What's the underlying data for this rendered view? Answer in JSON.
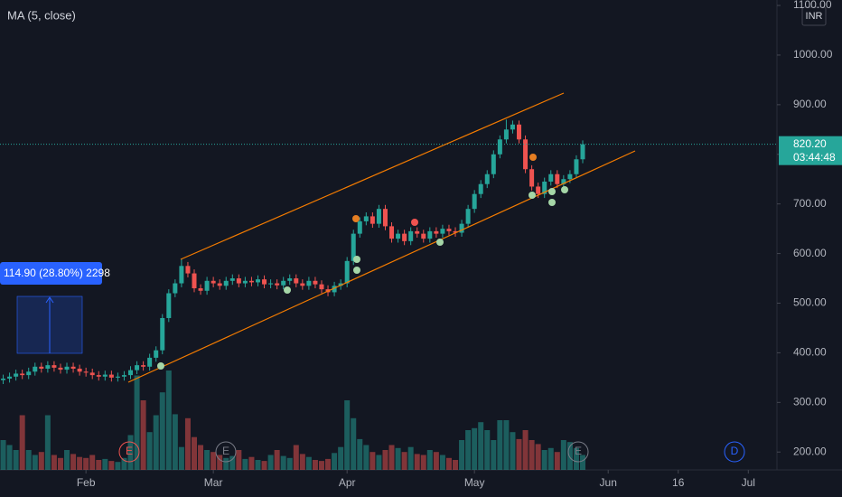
{
  "chart_data": {
    "type": "candlestick",
    "indicator": "MA (5, close)",
    "currency": "INR",
    "measure_label": "114.90 (28.80%) 2298",
    "last_label": "820.20",
    "countdown": "03:44:48",
    "events": [
      "E",
      "E",
      "E",
      "D"
    ],
    "xlim": [
      -0.5,
      121.5
    ],
    "xticks": [
      {
        "value": 13,
        "label": "Feb"
      },
      {
        "value": 33,
        "label": "Mar"
      },
      {
        "value": 54,
        "label": "Apr"
      },
      {
        "value": 74,
        "label": "May"
      },
      {
        "value": 95,
        "label": "Jun"
      },
      {
        "value": 106,
        "label": "16"
      },
      {
        "value": 117,
        "label": "Jul"
      }
    ],
    "ylim": [
      164,
      1111
    ],
    "yticks": [
      {
        "value": 200,
        "label": "200.00"
      },
      {
        "value": 300,
        "label": "300.00"
      },
      {
        "value": 400,
        "label": "400.00"
      },
      {
        "value": 500,
        "label": "500.00"
      },
      {
        "value": 600,
        "label": "600.00"
      },
      {
        "value": 700,
        "label": "700.00"
      },
      {
        "value": 800,
        "label": "800.00"
      },
      {
        "value": 900,
        "label": "900.00"
      },
      {
        "value": 1000,
        "label": "1000.00"
      },
      {
        "value": 1100,
        "label": "1100.00"
      }
    ],
    "grid": false,
    "up_color": "#26a69a",
    "down_color": "#ef5350",
    "open": [
      345,
      348,
      352,
      358,
      355,
      362,
      372,
      368,
      375,
      370,
      366,
      372,
      368,
      362,
      360,
      355,
      352,
      356,
      350,
      352,
      355,
      365,
      375,
      372,
      390,
      405,
      470,
      520,
      540,
      575,
      560,
      530,
      525,
      545,
      540,
      535,
      545,
      550,
      540,
      545,
      542,
      548,
      538,
      540,
      536,
      545,
      550,
      540,
      535,
      545,
      538,
      528,
      522,
      535,
      540,
      585,
      640,
      665,
      675,
      660,
      690,
      655,
      630,
      640,
      625,
      645,
      640,
      630,
      645,
      640,
      650,
      645,
      642,
      660,
      690,
      720,
      740,
      760,
      800,
      830,
      850,
      860,
      830,
      770,
      735,
      720,
      745,
      760,
      740,
      750,
      760,
      790
    ],
    "high": [
      356,
      360,
      366,
      366,
      370,
      380,
      380,
      383,
      383,
      378,
      380,
      380,
      376,
      370,
      368,
      363,
      364,
      364,
      360,
      363,
      373,
      383,
      383,
      398,
      413,
      478,
      528,
      548,
      590,
      583,
      568,
      538,
      553,
      553,
      548,
      553,
      558,
      558,
      553,
      553,
      556,
      556,
      548,
      548,
      553,
      558,
      558,
      548,
      553,
      553,
      546,
      536,
      543,
      548,
      593,
      648,
      673,
      683,
      683,
      698,
      698,
      663,
      648,
      648,
      653,
      653,
      648,
      653,
      653,
      658,
      658,
      653,
      668,
      698,
      728,
      748,
      768,
      808,
      838,
      870,
      868,
      868,
      838,
      778,
      743,
      753,
      768,
      768,
      758,
      768,
      798,
      828
    ],
    "low": [
      337,
      340,
      344,
      347,
      347,
      354,
      360,
      360,
      362,
      358,
      358,
      360,
      354,
      352,
      347,
      344,
      344,
      342,
      342,
      344,
      347,
      357,
      364,
      364,
      382,
      397,
      462,
      512,
      532,
      552,
      522,
      517,
      517,
      532,
      527,
      527,
      537,
      532,
      532,
      534,
      534,
      530,
      530,
      528,
      528,
      537,
      532,
      527,
      527,
      530,
      520,
      514,
      514,
      527,
      532,
      577,
      632,
      657,
      652,
      652,
      647,
      622,
      622,
      617,
      617,
      632,
      622,
      622,
      632,
      632,
      637,
      634,
      634,
      652,
      682,
      712,
      732,
      752,
      792,
      822,
      842,
      822,
      762,
      727,
      712,
      712,
      737,
      732,
      732,
      742,
      752,
      782
    ],
    "close": [
      348,
      352,
      358,
      355,
      362,
      372,
      368,
      375,
      370,
      366,
      372,
      368,
      362,
      360,
      355,
      352,
      356,
      350,
      352,
      355,
      365,
      375,
      372,
      390,
      405,
      470,
      520,
      540,
      575,
      560,
      530,
      525,
      545,
      540,
      535,
      545,
      550,
      540,
      545,
      542,
      548,
      538,
      540,
      536,
      545,
      550,
      540,
      535,
      545,
      538,
      528,
      522,
      535,
      540,
      585,
      640,
      665,
      675,
      660,
      690,
      655,
      630,
      640,
      625,
      645,
      640,
      630,
      645,
      640,
      650,
      645,
      642,
      660,
      690,
      720,
      740,
      760,
      800,
      830,
      850,
      860,
      830,
      770,
      735,
      720,
      745,
      760,
      740,
      750,
      760,
      790,
      820.2
    ],
    "volume": [
      300,
      250,
      200,
      550,
      200,
      150,
      180,
      550,
      150,
      120,
      200,
      160,
      130,
      120,
      150,
      100,
      110,
      90,
      80,
      120,
      350,
      950,
      700,
      380,
      550,
      780,
      1000,
      560,
      230,
      520,
      330,
      250,
      200,
      180,
      150,
      120,
      140,
      200,
      110,
      130,
      100,
      90,
      150,
      200,
      140,
      120,
      250,
      160,
      130,
      100,
      90,
      110,
      170,
      230,
      700,
      520,
      310,
      250,
      180,
      150,
      200,
      250,
      220,
      180,
      230,
      160,
      150,
      200,
      180,
      150,
      120,
      100,
      300,
      400,
      420,
      480,
      400,
      300,
      500,
      500,
      380,
      310,
      400,
      300,
      260,
      200,
      220,
      180,
      300,
      280,
      220,
      150
    ]
  }
}
